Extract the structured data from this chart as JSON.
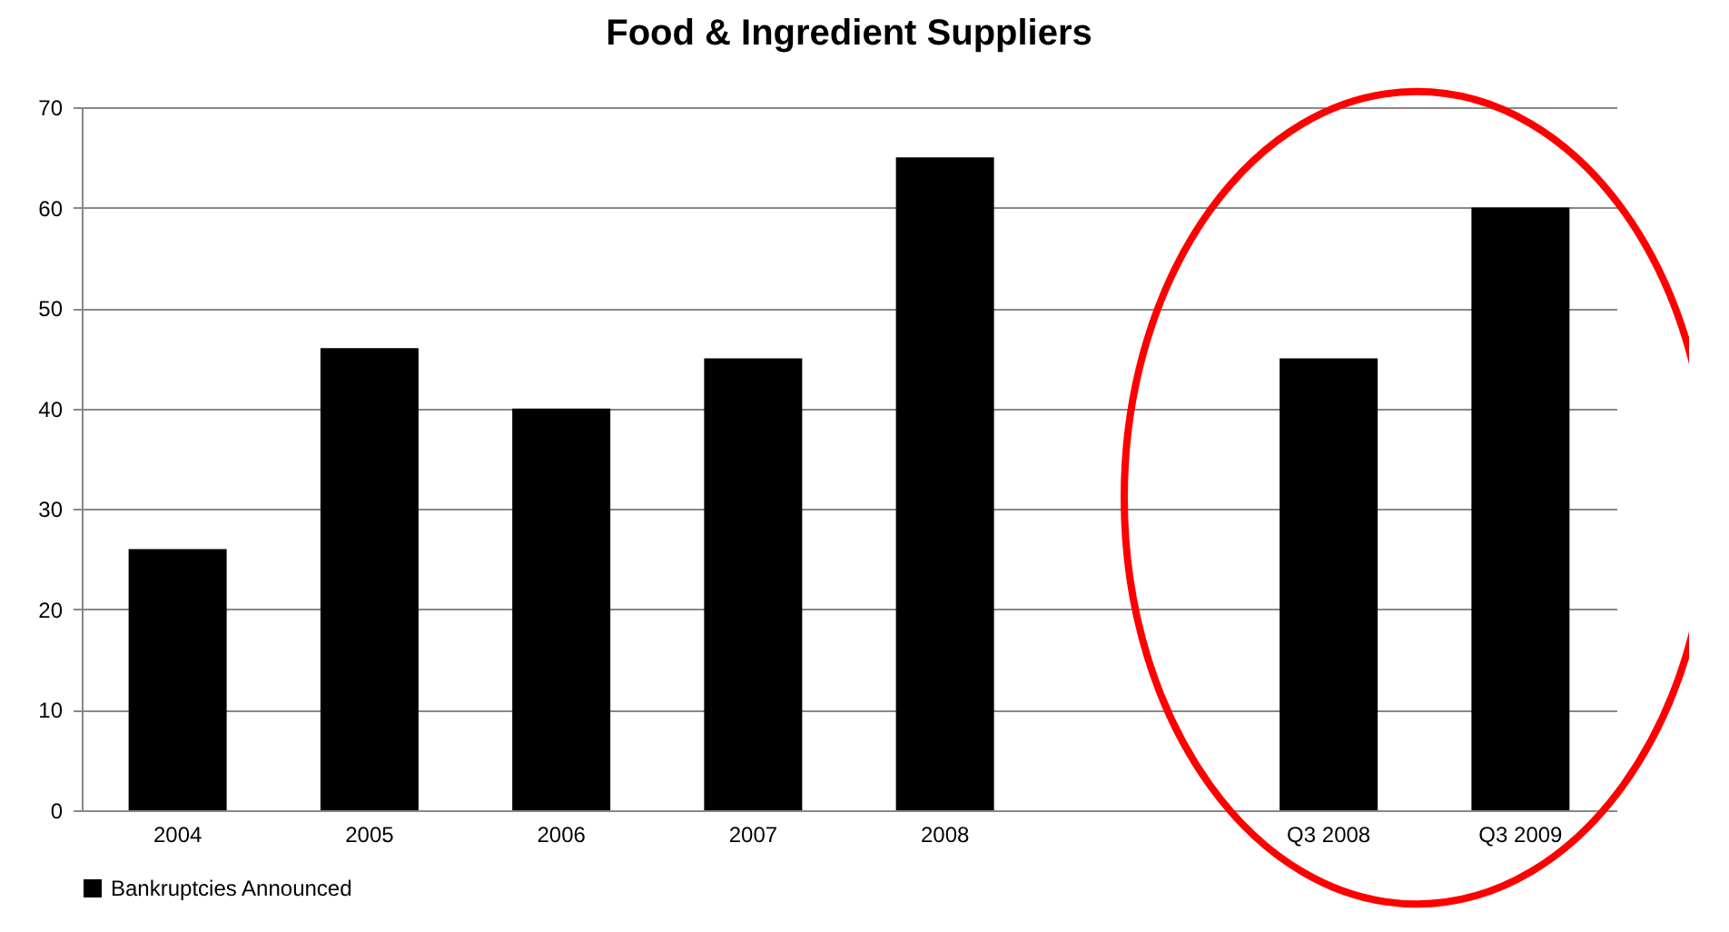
{
  "chart_data": {
    "type": "bar",
    "title": "Food & Ingredient Suppliers",
    "categories": [
      "2004",
      "2005",
      "2006",
      "2007",
      "2008",
      null,
      "Q3 2008",
      "Q3 2009"
    ],
    "series": [
      {
        "name": "Bankruptcies Announced",
        "color": "#000000",
        "values": [
          26,
          46,
          40,
          45,
          65,
          null,
          45,
          60
        ]
      }
    ],
    "ylim": [
      0,
      70
    ],
    "yticks": [
      0,
      10,
      20,
      30,
      40,
      50,
      60,
      70
    ],
    "grid": "y",
    "legend": "bottom"
  }
}
